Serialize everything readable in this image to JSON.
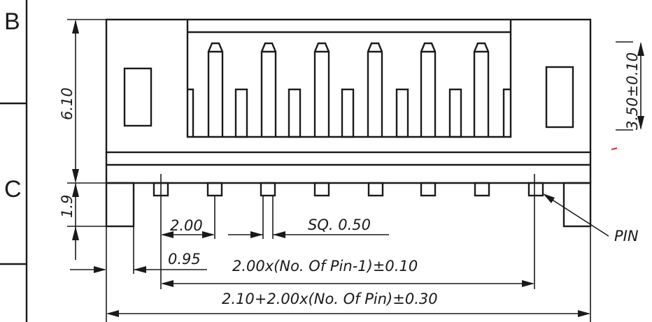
{
  "frame": {
    "zone_b": "B",
    "zone_c": "C"
  },
  "dimensions": {
    "height_total": "6.10",
    "height_lower": "1.9",
    "pin_height": "3.50±0.10",
    "pitch": "2.00",
    "pin_square": "SQ. 0.50",
    "edge_offset": "0.95",
    "pin_span": "2.00x(No. Of Pin-1)±0.10",
    "overall_width": "2.10+2.00x(No. Of Pin)±0.30"
  },
  "callouts": {
    "pin": "PIN"
  },
  "colors": {
    "line": "#1a1a1a",
    "background": "#ffffff",
    "stray_mark": "#e03030"
  }
}
